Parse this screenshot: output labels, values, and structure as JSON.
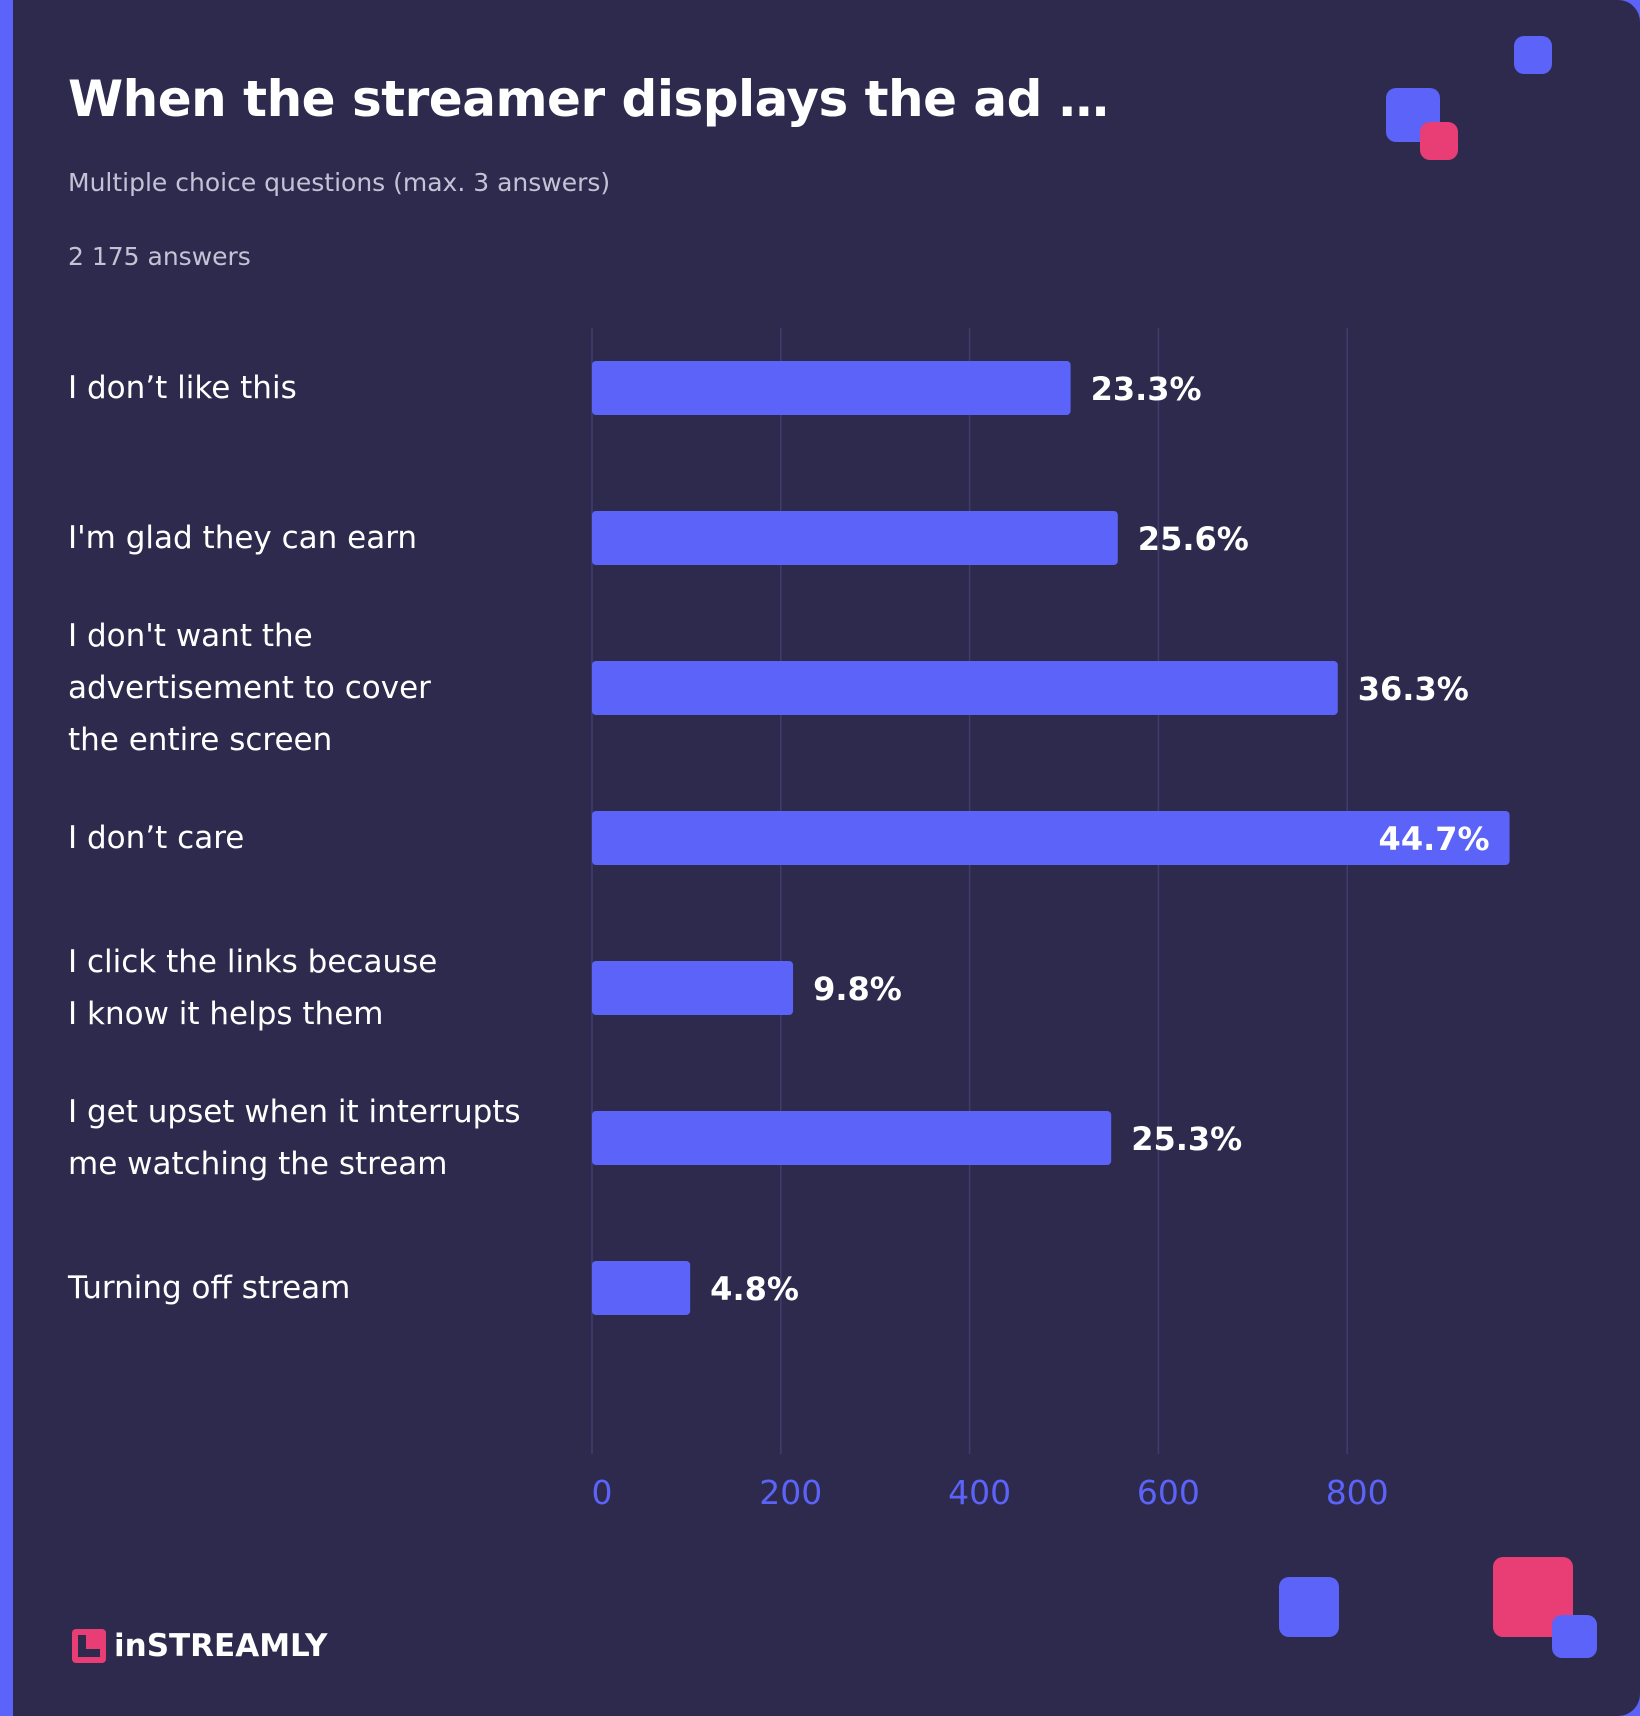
{
  "header": {
    "title": "When the streamer displays the ad …",
    "subtitle": "Multiple choice questions (max. 3 answers)",
    "answers": "2 175 answers"
  },
  "brand": {
    "name": "inSTREAMLY"
  },
  "colors": {
    "background": "#2d2a4d",
    "bar": "#5b63f8",
    "accent": "#e83e75",
    "grid": "#403d6e"
  },
  "chart_data": {
    "type": "bar",
    "orientation": "horizontal",
    "categories": [
      "I don’t like this",
      "I'm glad they can earn",
      "I don't want the\nadvertisement to cover\nthe entire screen",
      "I don’t care",
      "I click the links because\nI know it helps them",
      "I get upset when it interrupts\nme watching the stream",
      "Turning off stream"
    ],
    "values": [
      507,
      557,
      790,
      972,
      213,
      550,
      104
    ],
    "labels": [
      "23.3%",
      "25.6%",
      "36.3%",
      "44.7%",
      "9.8%",
      "25.3%",
      "4.8%"
    ],
    "xlim": [
      0,
      1000
    ],
    "xticks": [
      "0",
      "200",
      "400",
      "600",
      "800"
    ],
    "grid": true
  }
}
